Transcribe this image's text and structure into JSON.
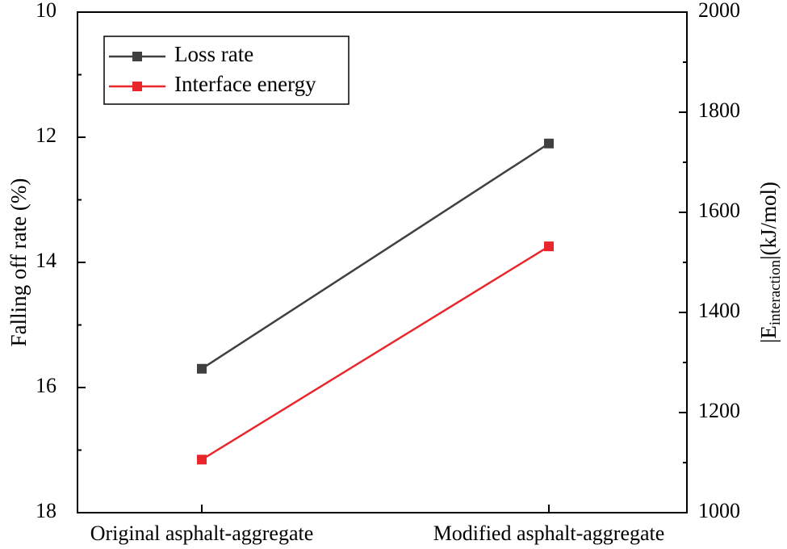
{
  "chart_data": {
    "type": "line",
    "categories": [
      "Original asphalt-aggregate",
      "Modified asphalt-aggregate"
    ],
    "series": [
      {
        "name": "Loss rate",
        "axis": "left",
        "values": [
          15.7,
          12.1
        ],
        "color": "#404040"
      },
      {
        "name": "Interface energy",
        "axis": "right",
        "values": [
          1106,
          1532
        ],
        "color": "#e8262b"
      }
    ],
    "left_axis": {
      "label": "Falling off rate (%)",
      "range": [
        10,
        18
      ],
      "inverted": true,
      "ticks": [
        "10",
        "12",
        "14",
        "16",
        "18"
      ]
    },
    "right_axis": {
      "label_main": "|E",
      "label_sub": "interaction",
      "label_tail": "|(kJ/mol)",
      "range": [
        1000,
        2000
      ],
      "ticks": [
        "1000",
        "1200",
        "1400",
        "1600",
        "1800",
        "2000"
      ]
    },
    "legend": {
      "position": "top-left",
      "entries": [
        "Loss rate",
        "Interface energy"
      ]
    }
  }
}
